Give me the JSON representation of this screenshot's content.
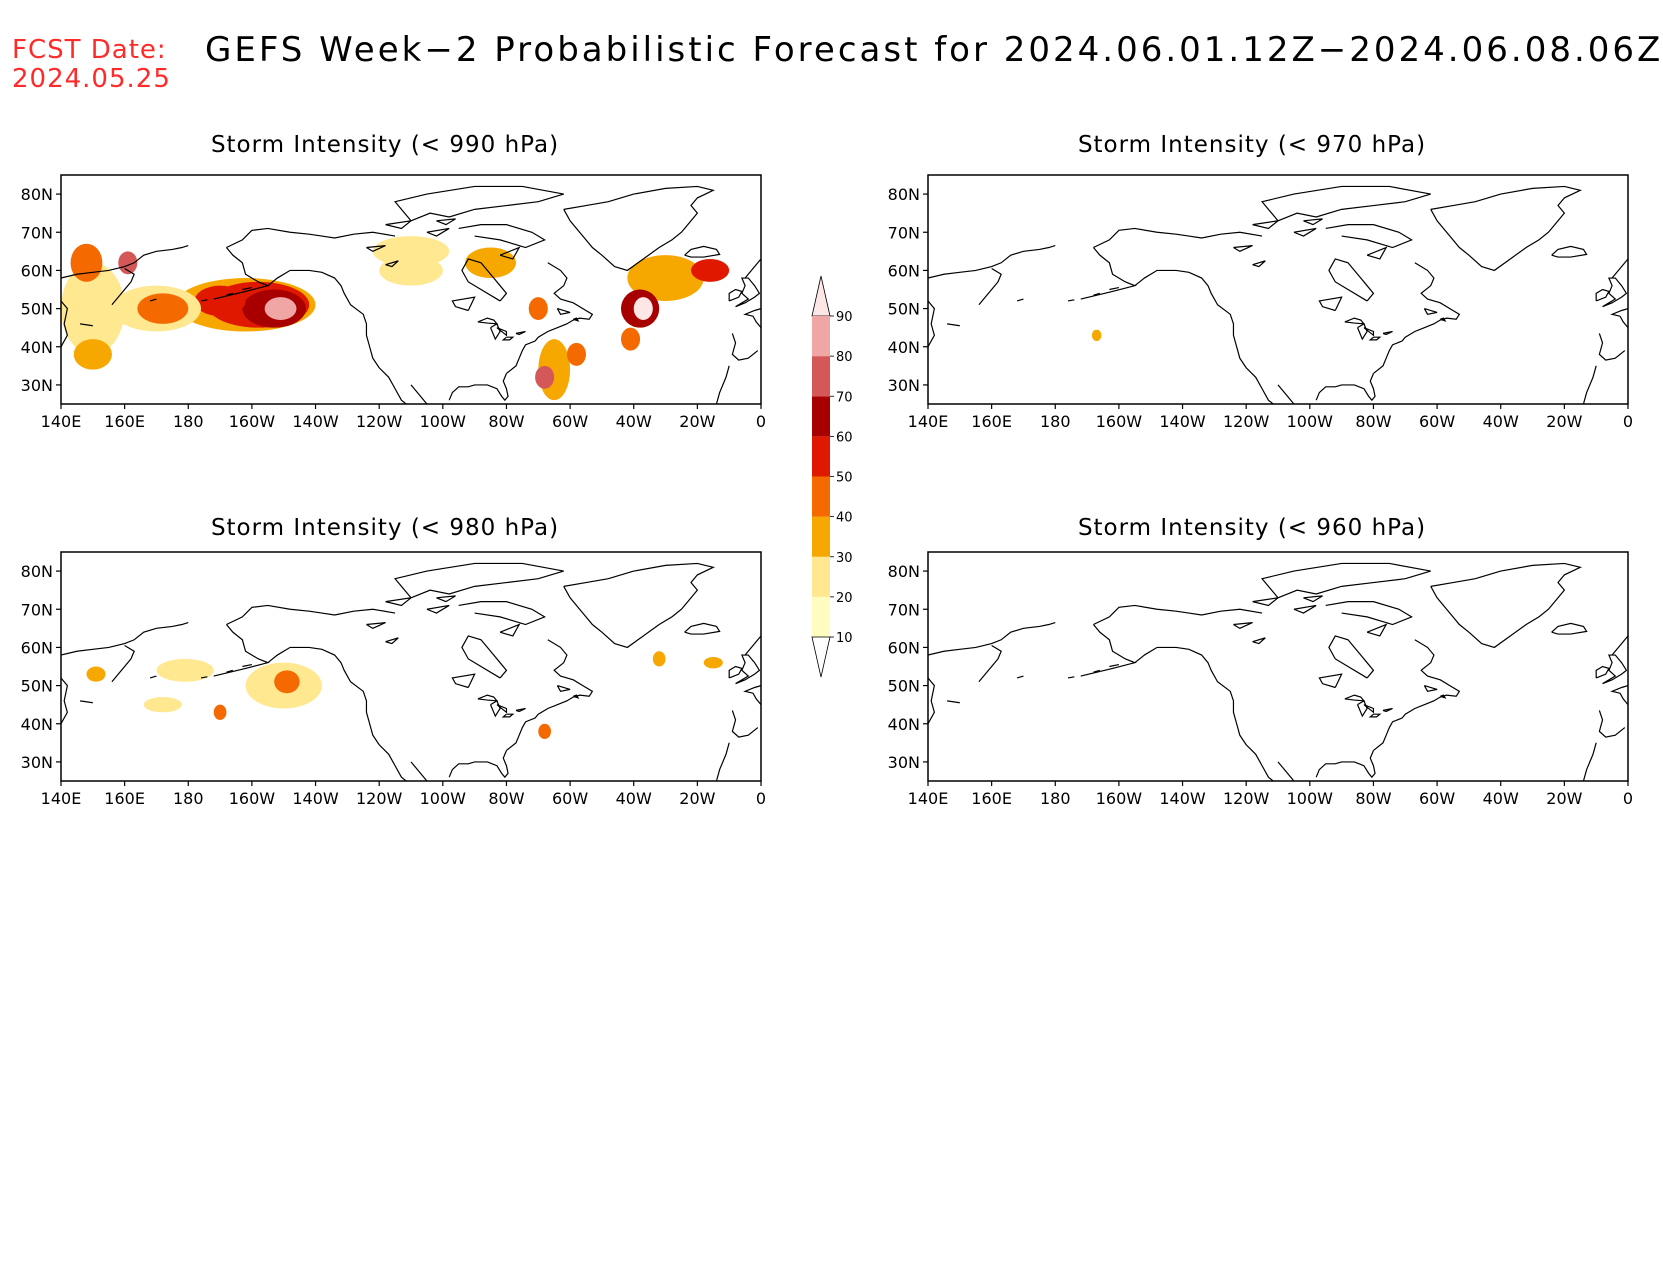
{
  "header": {
    "fcst_label": "FCST Date:",
    "fcst_date": "2024.05.25",
    "title": "GEFS Week−2 Probabilistic Forecast for 2024.06.01.12Z−2024.06.08.06Z"
  },
  "x_ticks": [
    "140E",
    "160E",
    "180",
    "160W",
    "140W",
    "120W",
    "100W",
    "80W",
    "60W",
    "40W",
    "20W",
    "0"
  ],
  "y_ticks": [
    "80N",
    "70N",
    "60N",
    "50N",
    "40N",
    "30N"
  ],
  "x_tick_lons": [
    140,
    160,
    180,
    200,
    220,
    240,
    260,
    280,
    300,
    320,
    340,
    360
  ],
  "y_tick_lats": [
    80,
    70,
    60,
    50,
    40,
    30
  ],
  "extent": {
    "lon_min": 140,
    "lon_max": 360,
    "lat_min": 25,
    "lat_max": 85
  },
  "colorbar": {
    "levels": [
      "10",
      "20",
      "30",
      "40",
      "50",
      "60",
      "70",
      "80",
      "90"
    ],
    "colors": [
      "#fffcc0",
      "#ffe890",
      "#f7a800",
      "#f46a00",
      "#e01800",
      "#a80000",
      "#d45858",
      "#f1a6a6",
      "#fde6e6"
    ]
  },
  "panels": [
    {
      "title": "Storm Intensity (< 990 hPa)",
      "blobs": [
        {
          "lon": 198,
          "lat": 51,
          "rx": 22,
          "ry": 7,
          "level": 2
        },
        {
          "lon": 202,
          "lat": 51,
          "rx": 16,
          "ry": 6,
          "level": 4
        },
        {
          "lon": 207,
          "lat": 50,
          "rx": 10,
          "ry": 5,
          "level": 5
        },
        {
          "lon": 209,
          "lat": 50,
          "rx": 5,
          "ry": 3,
          "level": 7
        },
        {
          "lon": 190,
          "lat": 52,
          "rx": 8,
          "ry": 4,
          "level": 4
        },
        {
          "lon": 170,
          "lat": 50,
          "rx": 14,
          "ry": 6,
          "level": 1
        },
        {
          "lon": 172,
          "lat": 50,
          "rx": 8,
          "ry": 4,
          "level": 3
        },
        {
          "lon": 150,
          "lat": 50,
          "rx": 10,
          "ry": 12,
          "level": 1
        },
        {
          "lon": 148,
          "lat": 62,
          "rx": 5,
          "ry": 5,
          "level": 3
        },
        {
          "lon": 161,
          "lat": 62,
          "rx": 3,
          "ry": 3,
          "level": 6
        },
        {
          "lon": 150,
          "lat": 38,
          "rx": 6,
          "ry": 4,
          "level": 2
        },
        {
          "lon": 250,
          "lat": 65,
          "rx": 12,
          "ry": 4,
          "level": 1
        },
        {
          "lon": 250,
          "lat": 60,
          "rx": 10,
          "ry": 4,
          "level": 1
        },
        {
          "lon": 275,
          "lat": 62,
          "rx": 8,
          "ry": 4,
          "level": 2
        },
        {
          "lon": 290,
          "lat": 50,
          "rx": 3,
          "ry": 3,
          "level": 3
        },
        {
          "lon": 295,
          "lat": 34,
          "rx": 5,
          "ry": 8,
          "level": 2
        },
        {
          "lon": 292,
          "lat": 32,
          "rx": 3,
          "ry": 3,
          "level": 6
        },
        {
          "lon": 302,
          "lat": 38,
          "rx": 3,
          "ry": 3,
          "level": 3
        },
        {
          "lon": 330,
          "lat": 58,
          "rx": 12,
          "ry": 6,
          "level": 2
        },
        {
          "lon": 344,
          "lat": 60,
          "rx": 6,
          "ry": 3,
          "level": 4
        },
        {
          "lon": 322,
          "lat": 50,
          "rx": 6,
          "ry": 5,
          "level": 5
        },
        {
          "lon": 323,
          "lat": 50,
          "rx": 3,
          "ry": 3,
          "level": 8
        },
        {
          "lon": 319,
          "lat": 42,
          "rx": 3,
          "ry": 3,
          "level": 3
        }
      ]
    },
    {
      "title": "Storm Intensity (< 970 hPa)",
      "blobs": [
        {
          "lon": 193,
          "lat": 43,
          "rx": 1.5,
          "ry": 1.5,
          "level": 2
        }
      ]
    },
    {
      "title": "Storm Intensity (< 980 hPa)",
      "blobs": [
        {
          "lon": 210,
          "lat": 50,
          "rx": 12,
          "ry": 6,
          "level": 1
        },
        {
          "lon": 211,
          "lat": 51,
          "rx": 4,
          "ry": 3,
          "level": 3
        },
        {
          "lon": 179,
          "lat": 54,
          "rx": 9,
          "ry": 3,
          "level": 1
        },
        {
          "lon": 172,
          "lat": 45,
          "rx": 6,
          "ry": 2,
          "level": 1
        },
        {
          "lon": 151,
          "lat": 53,
          "rx": 3,
          "ry": 2,
          "level": 2
        },
        {
          "lon": 190,
          "lat": 43,
          "rx": 2,
          "ry": 2,
          "level": 3
        },
        {
          "lon": 292,
          "lat": 38,
          "rx": 2,
          "ry": 2,
          "level": 3
        },
        {
          "lon": 328,
          "lat": 57,
          "rx": 2,
          "ry": 2,
          "level": 2
        },
        {
          "lon": 345,
          "lat": 56,
          "rx": 3,
          "ry": 1.5,
          "level": 2
        }
      ]
    },
    {
      "title": "Storm Intensity (< 960 hPa)",
      "blobs": []
    }
  ]
}
